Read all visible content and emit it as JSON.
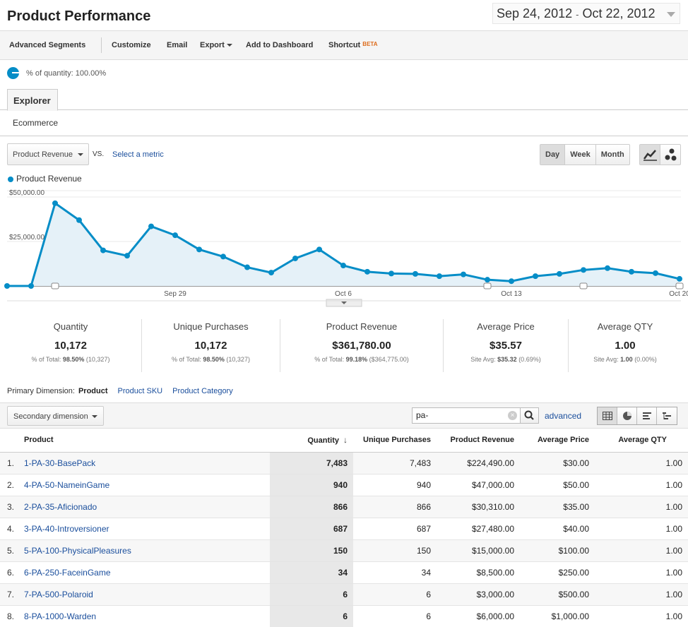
{
  "header": {
    "title": "Product Performance",
    "date_start": "Sep 24, 2012",
    "date_sep": "-",
    "date_end": "Oct 22, 2012"
  },
  "toolbar": {
    "advanced_segments": "Advanced Segments",
    "customize": "Customize",
    "email": "Email",
    "export": "Export",
    "add_to_dashboard": "Add to Dashboard",
    "shortcut": "Shortcut",
    "shortcut_badge": "BETA"
  },
  "segment": {
    "label": "% of quantity: 100.00%"
  },
  "tabs": {
    "explorer": "Explorer",
    "sub": "Ecommerce"
  },
  "chart_controls": {
    "metric": "Product Revenue",
    "vs": "VS.",
    "select_metric": "Select a metric",
    "intervals": [
      "Day",
      "Week",
      "Month"
    ],
    "active_interval": "Day"
  },
  "chart_data": {
    "type": "area",
    "title": "",
    "series": [
      {
        "name": "Product Revenue",
        "color": "#058dc7",
        "values": [
          0,
          0,
          46500,
          37000,
          20000,
          17000,
          33500,
          28500,
          20500,
          16500,
          10500,
          7500,
          15500,
          20500,
          11500,
          8000,
          7000,
          6800,
          5500,
          6500,
          3500,
          2700,
          5500,
          6800,
          9000,
          10000,
          8000,
          7200,
          4000
        ]
      }
    ],
    "x": [
      "Sep 22",
      "Sep 23",
      "Sep 24",
      "Sep 25",
      "Sep 26",
      "Sep 27",
      "Sep 28",
      "Sep 29",
      "Sep 30",
      "Oct 1",
      "Oct 2",
      "Oct 3",
      "Oct 4",
      "Oct 5",
      "Oct 6",
      "Oct 7",
      "Oct 8",
      "Oct 9",
      "Oct 10",
      "Oct 11",
      "Oct 12",
      "Oct 13",
      "Oct 14",
      "Oct 15",
      "Oct 16",
      "Oct 17",
      "Oct 18",
      "Oct 19",
      "Oct 20"
    ],
    "x_ticks": [
      "Sep 29",
      "Oct 6",
      "Oct 13",
      "Oct 20"
    ],
    "y_ticks": [
      "$50,000.00",
      "$25,000.00"
    ],
    "ylim": [
      0,
      50000
    ],
    "annotation_indices": [
      2,
      20,
      24,
      28
    ]
  },
  "scorecards": [
    {
      "label": "Quantity",
      "value": "10,172",
      "sub_prefix": "% of Total: ",
      "sub_bold": "98.50%",
      "sub_suffix": " (10,327)"
    },
    {
      "label": "Unique Purchases",
      "value": "10,172",
      "sub_prefix": "% of Total: ",
      "sub_bold": "98.50%",
      "sub_suffix": " (10,327)"
    },
    {
      "label": "Product Revenue",
      "value": "$361,780.00",
      "sub_prefix": "% of Total: ",
      "sub_bold": "99.18%",
      "sub_suffix": " ($364,775.00)"
    },
    {
      "label": "Average Price",
      "value": "$35.57",
      "sub_prefix": "Site Avg: ",
      "sub_bold": "$35.32",
      "sub_suffix": " (0.69%)"
    },
    {
      "label": "Average QTY",
      "value": "1.00",
      "sub_prefix": "Site Avg: ",
      "sub_bold": "1.00",
      "sub_suffix": " (0.00%)"
    }
  ],
  "primary_dimension": {
    "label": "Primary Dimension:",
    "current": "Product",
    "options": [
      "Product SKU",
      "Product Category"
    ]
  },
  "filter": {
    "secondary_dimension": "Secondary dimension",
    "search_value": "pa-",
    "advanced": "advanced"
  },
  "table": {
    "columns": [
      "Product",
      "Quantity",
      "Unique Purchases",
      "Product Revenue",
      "Average Price",
      "Average QTY"
    ],
    "rows": [
      {
        "idx": "1.",
        "product": "1-PA-30-BasePack",
        "quantity": "7,483",
        "unique": "7,483",
        "revenue": "$224,490.00",
        "price": "$30.00",
        "qty": "1.00"
      },
      {
        "idx": "2.",
        "product": "4-PA-50-NameinGame",
        "quantity": "940",
        "unique": "940",
        "revenue": "$47,000.00",
        "price": "$50.00",
        "qty": "1.00"
      },
      {
        "idx": "3.",
        "product": "2-PA-35-Aficionado",
        "quantity": "866",
        "unique": "866",
        "revenue": "$30,310.00",
        "price": "$35.00",
        "qty": "1.00"
      },
      {
        "idx": "4.",
        "product": "3-PA-40-Introversioner",
        "quantity": "687",
        "unique": "687",
        "revenue": "$27,480.00",
        "price": "$40.00",
        "qty": "1.00"
      },
      {
        "idx": "5.",
        "product": "5-PA-100-PhysicalPleasures",
        "quantity": "150",
        "unique": "150",
        "revenue": "$15,000.00",
        "price": "$100.00",
        "qty": "1.00"
      },
      {
        "idx": "6.",
        "product": "6-PA-250-FaceinGame",
        "quantity": "34",
        "unique": "34",
        "revenue": "$8,500.00",
        "price": "$250.00",
        "qty": "1.00"
      },
      {
        "idx": "7.",
        "product": "7-PA-500-Polaroid",
        "quantity": "6",
        "unique": "6",
        "revenue": "$3,000.00",
        "price": "$500.00",
        "qty": "1.00"
      },
      {
        "idx": "8.",
        "product": "8-PA-1000-Warden",
        "quantity": "6",
        "unique": "6",
        "revenue": "$6,000.00",
        "price": "$1,000.00",
        "qty": "1.00"
      }
    ]
  }
}
